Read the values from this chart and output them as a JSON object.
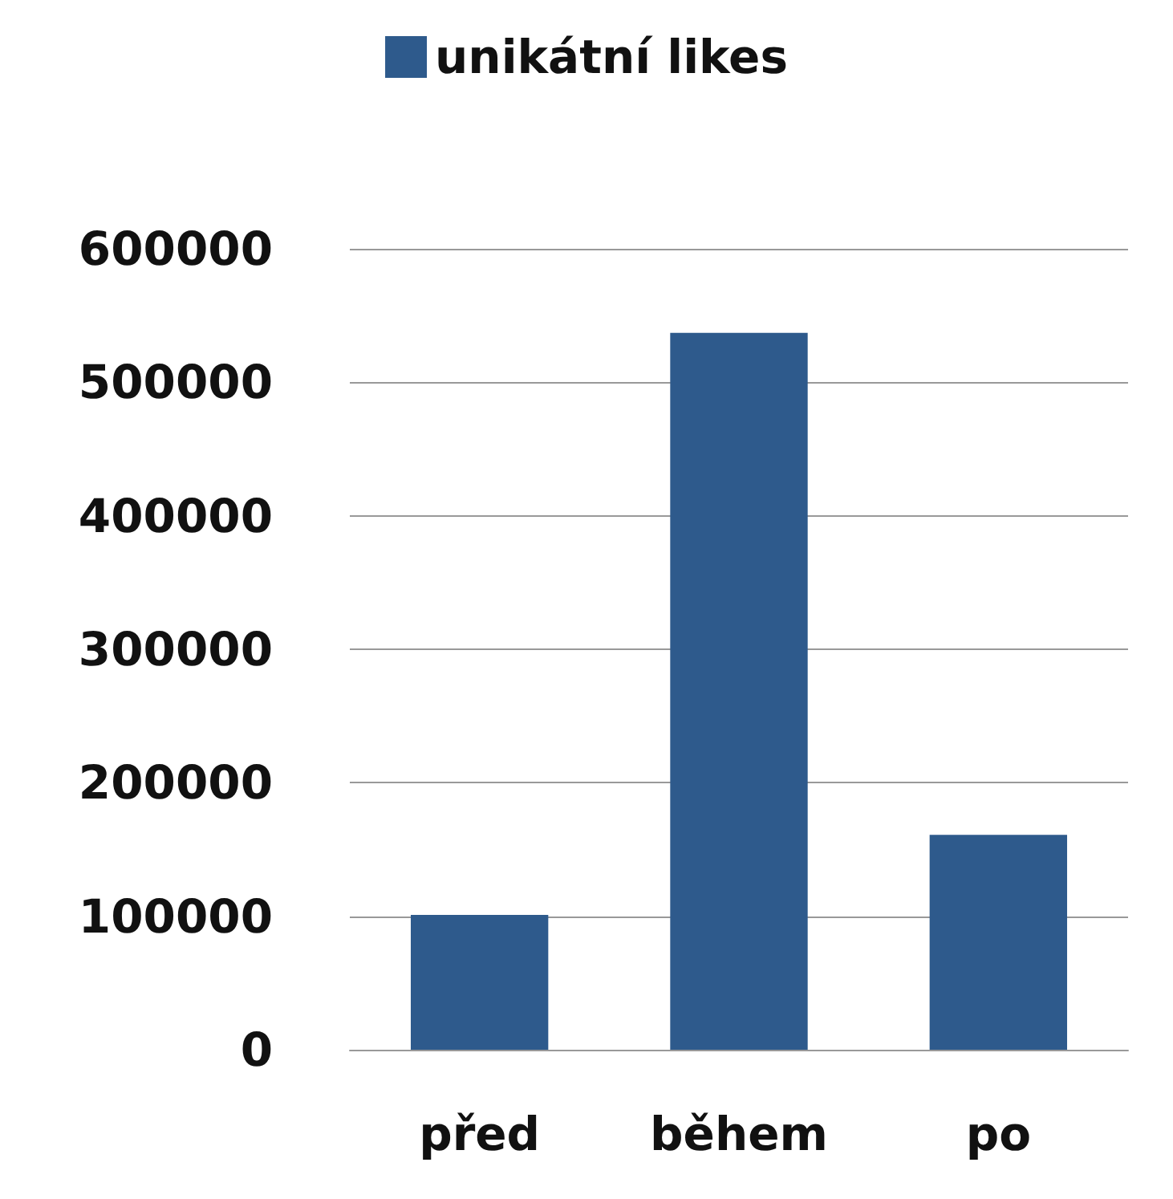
{
  "chart_data": {
    "type": "bar",
    "categories": [
      "před",
      "během",
      "po"
    ],
    "series": [
      {
        "name": "unikátní likes",
        "color": "#2e5a8c",
        "values": [
          101000,
          537000,
          161000
        ]
      }
    ],
    "ylim": [
      0,
      600000
    ],
    "yticks": [
      0,
      100000,
      200000,
      300000,
      400000,
      500000,
      600000
    ],
    "grid": "y",
    "legend": "top"
  }
}
